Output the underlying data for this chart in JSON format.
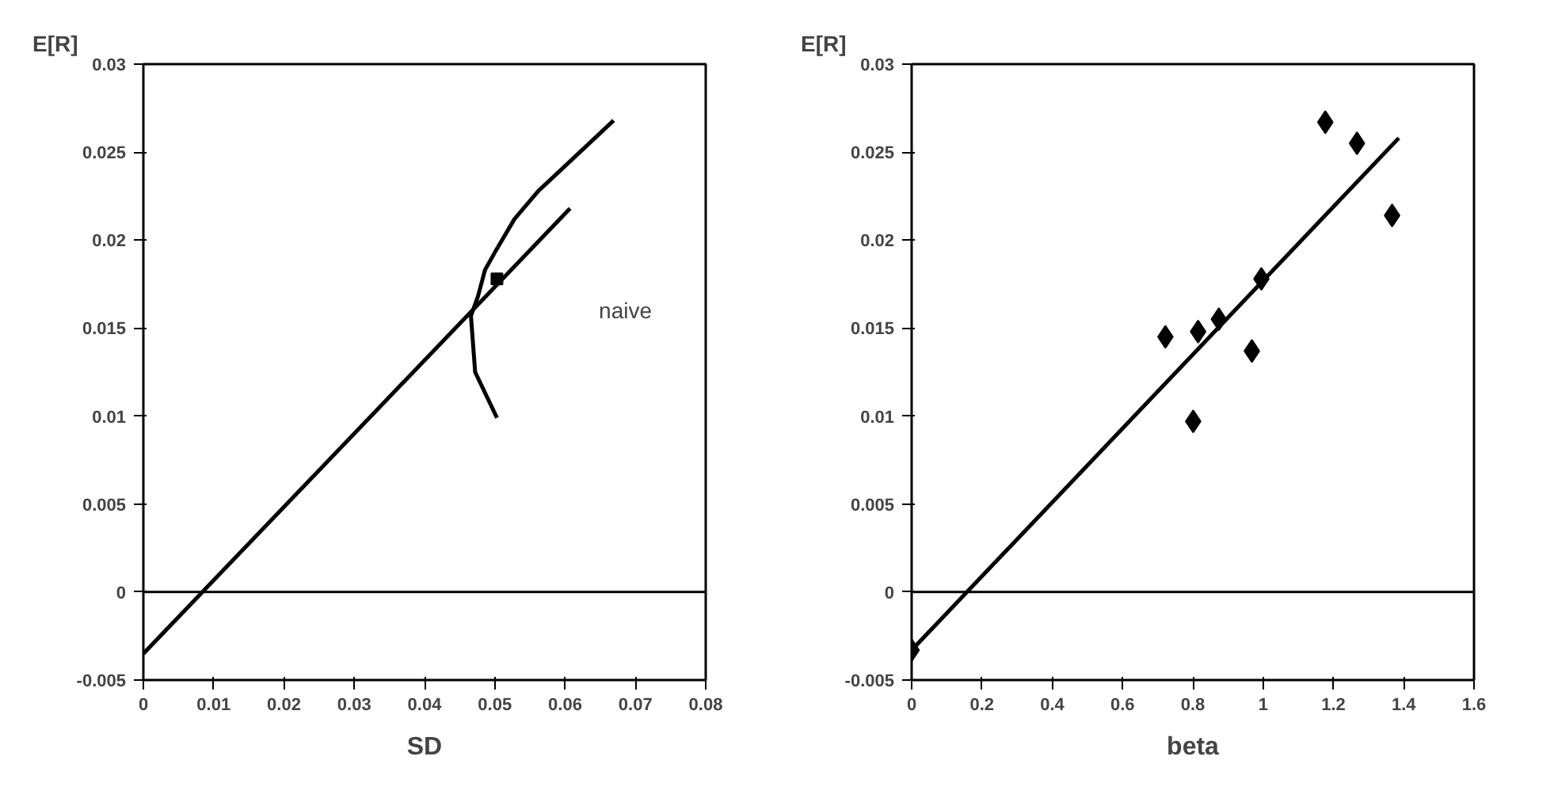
{
  "chart_data": [
    {
      "type": "line",
      "xlabel": "SD",
      "ylabel": "E[R]",
      "xlim": [
        0,
        0.08
      ],
      "ylim": [
        -0.005,
        0.03
      ],
      "xticks": [
        0,
        0.01,
        0.02,
        0.03,
        0.04,
        0.05,
        0.06,
        0.07,
        0.08
      ],
      "yticks": [
        -0.005,
        0,
        0.005,
        0.01,
        0.015,
        0.02,
        0.025,
        0.03
      ],
      "grid": false,
      "series": [
        {
          "color": "#000000",
          "x": [
            0,
            0.0607
          ],
          "values": [
            -0.0035,
            0.0218
          ]
        },
        {
          "color": "#000000",
          "x": [
            0.0503,
            0.0472,
            0.0466,
            0.0476,
            0.0486,
            0.05,
            0.0528,
            0.0562,
            0.0597,
            0.0669
          ],
          "values": [
            0.0099,
            0.0125,
            0.0157,
            0.0168,
            0.0183,
            0.0193,
            0.0212,
            0.0228,
            0.0241,
            0.0268
          ]
        },
        {
          "type": "scatter",
          "marker": "square",
          "color": "#000000",
          "x": [
            0.0503
          ],
          "values": [
            0.0178
          ]
        }
      ],
      "ref_lines": [
        {
          "axis": "y",
          "value": 0,
          "color": "#000000"
        }
      ],
      "annotations": [
        "naive"
      ]
    },
    {
      "type": "scatter",
      "xlabel": "beta",
      "ylabel": "E[R]",
      "xlim": [
        0,
        1.6
      ],
      "ylim": [
        -0.005,
        0.03
      ],
      "xticks": [
        0,
        0.2,
        0.4,
        0.6,
        0.8,
        1,
        1.2,
        1.4,
        1.6
      ],
      "yticks": [
        -0.005,
        0,
        0.005,
        0.01,
        0.015,
        0.02,
        0.025,
        0.03
      ],
      "grid": false,
      "ref_lines": [
        {
          "axis": "y",
          "value": 0,
          "color": "#000000"
        }
      ],
      "series": [
        {
          "marker": "diamond",
          "color": "#000000",
          "x": [
            0,
            0.722,
            0.801,
            0.815,
            0.874,
            0.968,
            0.995,
            1.177,
            1.267,
            1.367
          ],
          "values": [
            -0.0033,
            0.0145,
            0.0097,
            0.0148,
            0.0155,
            0.0137,
            0.0178,
            0.0267,
            0.0255,
            0.0214
          ]
        },
        {
          "type": "line",
          "color": "#000000",
          "x": [
            0,
            1.386
          ],
          "values": [
            -0.0033,
            0.0258
          ]
        }
      ]
    }
  ]
}
